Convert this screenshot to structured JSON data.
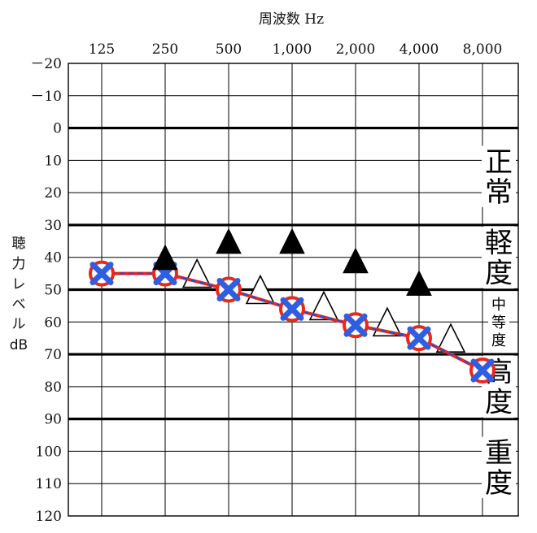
{
  "chart_data": {
    "type": "scatter",
    "title": "周波数 Hz",
    "ylabel": [
      "聴",
      "力",
      "レ",
      "ベ",
      "ル",
      "dB"
    ],
    "x_ticks": [
      "125",
      "250",
      "500",
      "1,000",
      "2,000",
      "4,000",
      "8,000"
    ],
    "y_ticks": [
      "－20",
      "－10",
      "0",
      "10",
      "20",
      "30",
      "40",
      "50",
      "60",
      "70",
      "80",
      "90",
      "100",
      "110",
      "120"
    ],
    "ylim": [
      -20,
      120
    ],
    "y_inverted": true,
    "grid": true,
    "threshold_lines": [
      0,
      30,
      50,
      70,
      90
    ],
    "bands": [
      {
        "chars": [
          "正",
          "常"
        ],
        "range": [
          0,
          30
        ],
        "size": "large"
      },
      {
        "chars": [
          "軽",
          "度"
        ],
        "range": [
          30,
          50
        ],
        "size": "large"
      },
      {
        "chars": [
          "中",
          "等",
          "度"
        ],
        "range": [
          50,
          70
        ],
        "size": "small"
      },
      {
        "chars": [
          "高",
          "度"
        ],
        "range": [
          70,
          90
        ],
        "size": "large"
      },
      {
        "chars": [
          "重",
          "度"
        ],
        "range": [
          90,
          120
        ],
        "size": "large"
      }
    ],
    "series": [
      {
        "marker": "o-x",
        "color_line": "#1e4fd8",
        "color_circle": "#e8291c",
        "color_cross": "#2f5fe0",
        "points": [
          {
            "f": 125,
            "v": 45
          },
          {
            "f": 250,
            "v": 45
          },
          {
            "f": 500,
            "v": 50
          },
          {
            "f": 1000,
            "v": 56
          },
          {
            "f": 2000,
            "v": 61
          },
          {
            "f": 4000,
            "v": 65
          },
          {
            "f": 8000,
            "v": 75
          }
        ]
      },
      {
        "marker": "filled-triangle",
        "color": "#000000",
        "points": [
          {
            "f": 250,
            "v": 40
          },
          {
            "f": 500,
            "v": 35
          },
          {
            "f": 1000,
            "v": 35
          },
          {
            "f": 2000,
            "v": 41
          },
          {
            "f": 4000,
            "v": 48
          }
        ]
      },
      {
        "marker": "open-triangle",
        "color": "#000000",
        "points": [
          {
            "f": 354,
            "v": 45
          },
          {
            "f": 707,
            "v": 50
          },
          {
            "f": 1414,
            "v": 55
          },
          {
            "f": 2828,
            "v": 60
          },
          {
            "f": 5657,
            "v": 65
          }
        ]
      }
    ]
  }
}
